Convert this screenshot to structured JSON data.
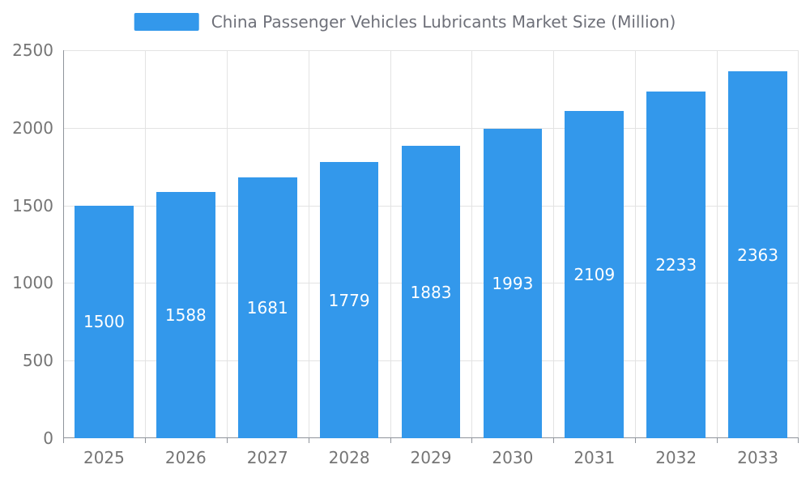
{
  "chart_data": {
    "type": "bar",
    "title": "China Passenger Vehicles Lubricants Market Size (Million)",
    "categories": [
      "2025",
      "2026",
      "2027",
      "2028",
      "2029",
      "2030",
      "2031",
      "2032",
      "2033"
    ],
    "values": [
      1500,
      1588,
      1681,
      1779,
      1883,
      1993,
      2109,
      2233,
      2363
    ],
    "series_name": "China Passenger Vehicles Lubricants Market Size (Million)",
    "xlabel": "",
    "ylabel": "",
    "ylim": [
      0,
      2500
    ],
    "yticks": [
      0,
      500,
      1000,
      1500,
      2000,
      2500
    ],
    "grid": true,
    "legend_position": "top",
    "value_labels": "inside-center",
    "bar_color": "#3398eb",
    "bar_label_color": "#ffffff",
    "title_color": "#6e7079",
    "axis_text_color": "#757575",
    "grid_color": "#e3e3e3",
    "axis_line_color": "#8f949b",
    "background_color": "#ffffff"
  }
}
